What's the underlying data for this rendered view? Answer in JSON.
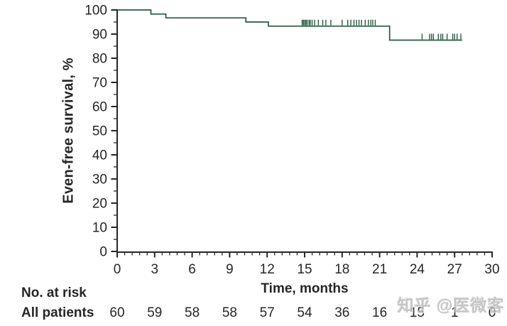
{
  "chart_data": {
    "type": "line",
    "subtype": "kaplan-meier-step",
    "title": "",
    "xlabel": "Time, months",
    "ylabel": "Even-free survival, %",
    "xlim": [
      0,
      30
    ],
    "ylim": [
      0,
      100
    ],
    "xticks": [
      0,
      3,
      6,
      9,
      12,
      15,
      18,
      21,
      24,
      27,
      30
    ],
    "x_minor_step": 0.6,
    "yticks": [
      0,
      10,
      20,
      30,
      40,
      50,
      60,
      70,
      80,
      90,
      100
    ],
    "y_minor_step": 5,
    "grid": "off",
    "legend": "none",
    "axis_color": "#262626",
    "series": [
      {
        "name": "All patients",
        "color": "#265a40",
        "step_points": [
          [
            0,
            100
          ],
          [
            2.7,
            100
          ],
          [
            2.7,
            98.3
          ],
          [
            3.9,
            98.3
          ],
          [
            3.9,
            96.7
          ],
          [
            10.3,
            96.7
          ],
          [
            10.3,
            95.0
          ],
          [
            12.1,
            95.0
          ],
          [
            12.1,
            93.3
          ],
          [
            21.8,
            93.3
          ],
          [
            21.8,
            87.5
          ],
          [
            27.6,
            87.5
          ]
        ],
        "censor_marks": [
          [
            14.8,
            93.3
          ],
          [
            14.9,
            93.3
          ],
          [
            15.0,
            93.3
          ],
          [
            15.1,
            93.3
          ],
          [
            15.2,
            93.3
          ],
          [
            15.35,
            93.3
          ],
          [
            15.45,
            93.3
          ],
          [
            15.6,
            93.3
          ],
          [
            15.8,
            93.3
          ],
          [
            16.1,
            93.3
          ],
          [
            16.45,
            93.3
          ],
          [
            16.7,
            93.3
          ],
          [
            17.1,
            93.3
          ],
          [
            18.0,
            93.3
          ],
          [
            18.45,
            93.3
          ],
          [
            18.7,
            93.3
          ],
          [
            18.95,
            93.3
          ],
          [
            19.15,
            93.3
          ],
          [
            19.35,
            93.3
          ],
          [
            19.55,
            93.3
          ],
          [
            19.85,
            93.3
          ],
          [
            20.1,
            93.3
          ],
          [
            20.3,
            93.3
          ],
          [
            20.45,
            93.3
          ],
          [
            20.65,
            93.3
          ],
          [
            24.4,
            87.5
          ],
          [
            25.0,
            87.5
          ],
          [
            25.15,
            87.5
          ],
          [
            25.3,
            87.5
          ],
          [
            25.7,
            87.5
          ],
          [
            25.9,
            87.5
          ],
          [
            26.05,
            87.5
          ],
          [
            26.4,
            87.5
          ],
          [
            26.85,
            87.5
          ],
          [
            27.0,
            87.5
          ],
          [
            27.2,
            87.5
          ],
          [
            27.5,
            87.5
          ]
        ]
      }
    ]
  },
  "risk_table": {
    "header": "No. at risk",
    "time_points": [
      0,
      3,
      6,
      9,
      12,
      15,
      18,
      21,
      24,
      27,
      30
    ],
    "rows": [
      {
        "label": "All patients",
        "values": [
          "60",
          "59",
          "58",
          "58",
          "57",
          "54",
          "36",
          "16",
          "15",
          "1",
          "0"
        ]
      }
    ]
  },
  "watermark": {
    "text": "知乎 @医微客",
    "color": "#b9b9b9"
  }
}
